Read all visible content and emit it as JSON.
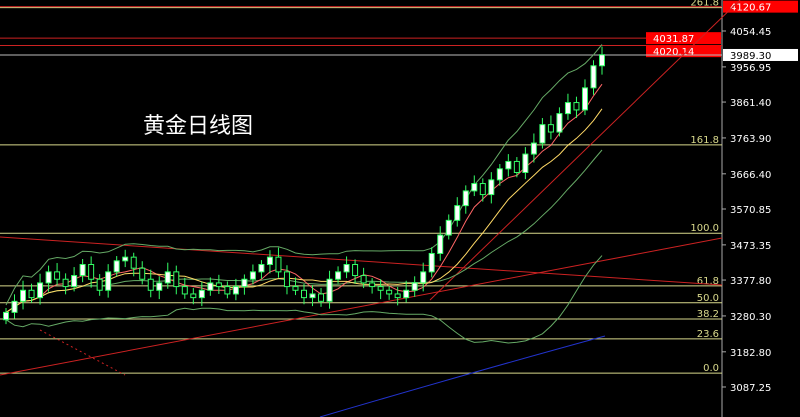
{
  "title": "黄金日线图",
  "colors": {
    "background": "#000000",
    "up": "#ffffff",
    "down": "#000000",
    "candle_border": "#33ff66",
    "fib": "#d9d98c",
    "trend": "#cc2222",
    "ma_short": "#ff6666",
    "ma_mid": "#ffd966",
    "ma_long": "#2233cc",
    "band": "#66aa66"
  },
  "chart_data": {
    "type": "candlestick",
    "ylim": [
      3040,
      4130
    ],
    "y_ticks": [
      "4054.45",
      "3956.95",
      "3861.40",
      "3763.90",
      "3666.40",
      "3570.85",
      "3473.35",
      "3377.80",
      "3280.30",
      "3182.80",
      "3087.25"
    ],
    "price_tags": [
      {
        "label": "4120.67",
        "value": 4120.67,
        "color": "#ff0000"
      },
      {
        "label": "4031.87",
        "value": 4035,
        "color": "#ff0000"
      },
      {
        "label": "4020.14",
        "value": 4015,
        "color": "#ff0000"
      },
      {
        "label": "3989.30",
        "value": 3989.3,
        "color": "#ffffff"
      }
    ],
    "fib_levels": [
      {
        "label": "261.8",
        "value": 4118
      },
      {
        "label": "161.8",
        "value": 3745
      },
      {
        "label": "100.0",
        "value": 3505
      },
      {
        "label": "61.8",
        "value": 3362
      },
      {
        "label": "50.0",
        "value": 3316
      },
      {
        "label": "38.2",
        "value": 3272
      },
      {
        "label": "23.6",
        "value": 3218
      },
      {
        "label": "0.0",
        "value": 3125
      }
    ],
    "closes": [
      3290,
      3320,
      3350,
      3330,
      3370,
      3400,
      3380,
      3360,
      3390,
      3420,
      3380,
      3350,
      3400,
      3430,
      3440,
      3410,
      3380,
      3350,
      3370,
      3400,
      3360,
      3340,
      3330,
      3350,
      3370,
      3360,
      3340,
      3360,
      3380,
      3400,
      3420,
      3440,
      3400,
      3360,
      3350,
      3330,
      3340,
      3320,
      3380,
      3400,
      3420,
      3390,
      3370,
      3360,
      3350,
      3340,
      3330,
      3350,
      3370,
      3400,
      3450,
      3500,
      3540,
      3580,
      3620,
      3640,
      3610,
      3650,
      3680,
      3700,
      3670,
      3720,
      3750,
      3800,
      3780,
      3830,
      3860,
      3840,
      3900,
      3960,
      3990
    ]
  }
}
